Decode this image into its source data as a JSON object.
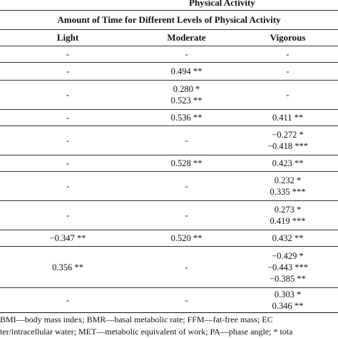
{
  "header": {
    "group_title": "Physical Activity",
    "subtitle": "Amount of Time for Different Levels of Physical Activity"
  },
  "columns": [
    "Light",
    "Moderate",
    "Vigorous"
  ],
  "rows": [
    {
      "light": [
        "-"
      ],
      "moderate": [
        "-"
      ],
      "vigorous": [
        "-"
      ]
    },
    {
      "light": [
        "-"
      ],
      "moderate": [
        "0.494 **"
      ],
      "vigorous": [
        "-"
      ]
    },
    {
      "light": [
        "-"
      ],
      "moderate": [
        "0.280 *",
        "0.523 **"
      ],
      "vigorous": [
        "-"
      ]
    },
    {
      "light": [
        "-"
      ],
      "moderate": [
        "0.536 **"
      ],
      "vigorous": [
        "0.411 **"
      ]
    },
    {
      "light": [
        "-"
      ],
      "moderate": [
        "-"
      ],
      "vigorous": [
        "−0.272 *",
        "−0.418 ***"
      ]
    },
    {
      "light": [
        "-"
      ],
      "moderate": [
        "0.528 **"
      ],
      "vigorous": [
        "0.423 **"
      ]
    },
    {
      "light": [
        "-"
      ],
      "moderate": [
        "-"
      ],
      "vigorous": [
        "0.232 *",
        "0.335 ***"
      ]
    },
    {
      "light": [
        "-"
      ],
      "moderate": [
        "-"
      ],
      "vigorous": [
        "0.273 *",
        "0.419 ***"
      ]
    },
    {
      "light": [
        "−0.347 **"
      ],
      "moderate": [
        "0.520 **"
      ],
      "vigorous": [
        "0.432 **"
      ]
    },
    {
      "light": [
        "0.356 **"
      ],
      "moderate": [
        "-"
      ],
      "vigorous": [
        "−0.429 *",
        "−0.443 ***",
        "−0.385 **"
      ]
    },
    {
      "light": [
        "-"
      ],
      "moderate": [
        "-"
      ],
      "vigorous": [
        "0.303 *",
        "0.346 **"
      ]
    }
  ],
  "footnote": {
    "line1": "BMI—body mass index; BMR—basal metabolic rate; FFM—fat-free mass; EC",
    "line2": "ter/intracellular water; MET—metabolic equivalent of work; PA—phase angle; * tota"
  }
}
